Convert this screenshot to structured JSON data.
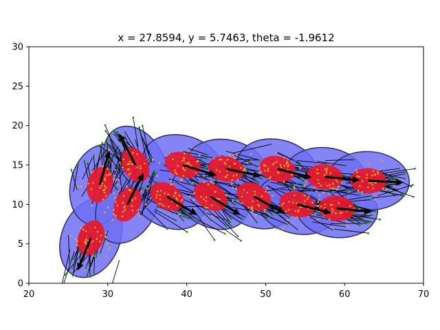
{
  "chart_data": {
    "type": "scatter",
    "title": "x = 27.8594, y = 5.7463, theta = -1.9612",
    "xlabel": "",
    "ylabel": "",
    "xlim": [
      20,
      70
    ],
    "ylim": [
      0,
      30
    ],
    "xticks": [
      "20",
      "30",
      "40",
      "50",
      "60",
      "70"
    ],
    "yticks": [
      "0",
      "5",
      "10",
      "15",
      "20",
      "25",
      "30"
    ],
    "grid": false,
    "colors": {
      "outer_ellipse": "#6f6ff5",
      "inner_ellipse": "#e8192c",
      "arrow": "#000000",
      "particle": "#1a8a1a",
      "point": "#f5a623"
    },
    "poses": [
      {
        "x": 27.86,
        "y": 5.75,
        "theta": -1.96
      },
      {
        "x": 29.0,
        "y": 12.5,
        "theta": 1.3
      },
      {
        "x": 32.5,
        "y": 10.0,
        "theta": 1.1
      },
      {
        "x": 33.5,
        "y": 15.0,
        "theta": 2.05
      },
      {
        "x": 37.5,
        "y": 11.0,
        "theta": -0.55
      },
      {
        "x": 39.5,
        "y": 15.0,
        "theta": -0.3
      },
      {
        "x": 43.0,
        "y": 11.0,
        "theta": -0.55
      },
      {
        "x": 45.0,
        "y": 14.5,
        "theta": -0.2
      },
      {
        "x": 48.5,
        "y": 11.0,
        "theta": -0.5
      },
      {
        "x": 51.5,
        "y": 14.5,
        "theta": -0.25
      },
      {
        "x": 54.0,
        "y": 10.0,
        "theta": -0.25
      },
      {
        "x": 57.5,
        "y": 13.5,
        "theta": -0.1
      },
      {
        "x": 59.0,
        "y": 9.5,
        "theta": -0.1
      },
      {
        "x": 63.0,
        "y": 13.0,
        "theta": -0.05
      }
    ]
  }
}
